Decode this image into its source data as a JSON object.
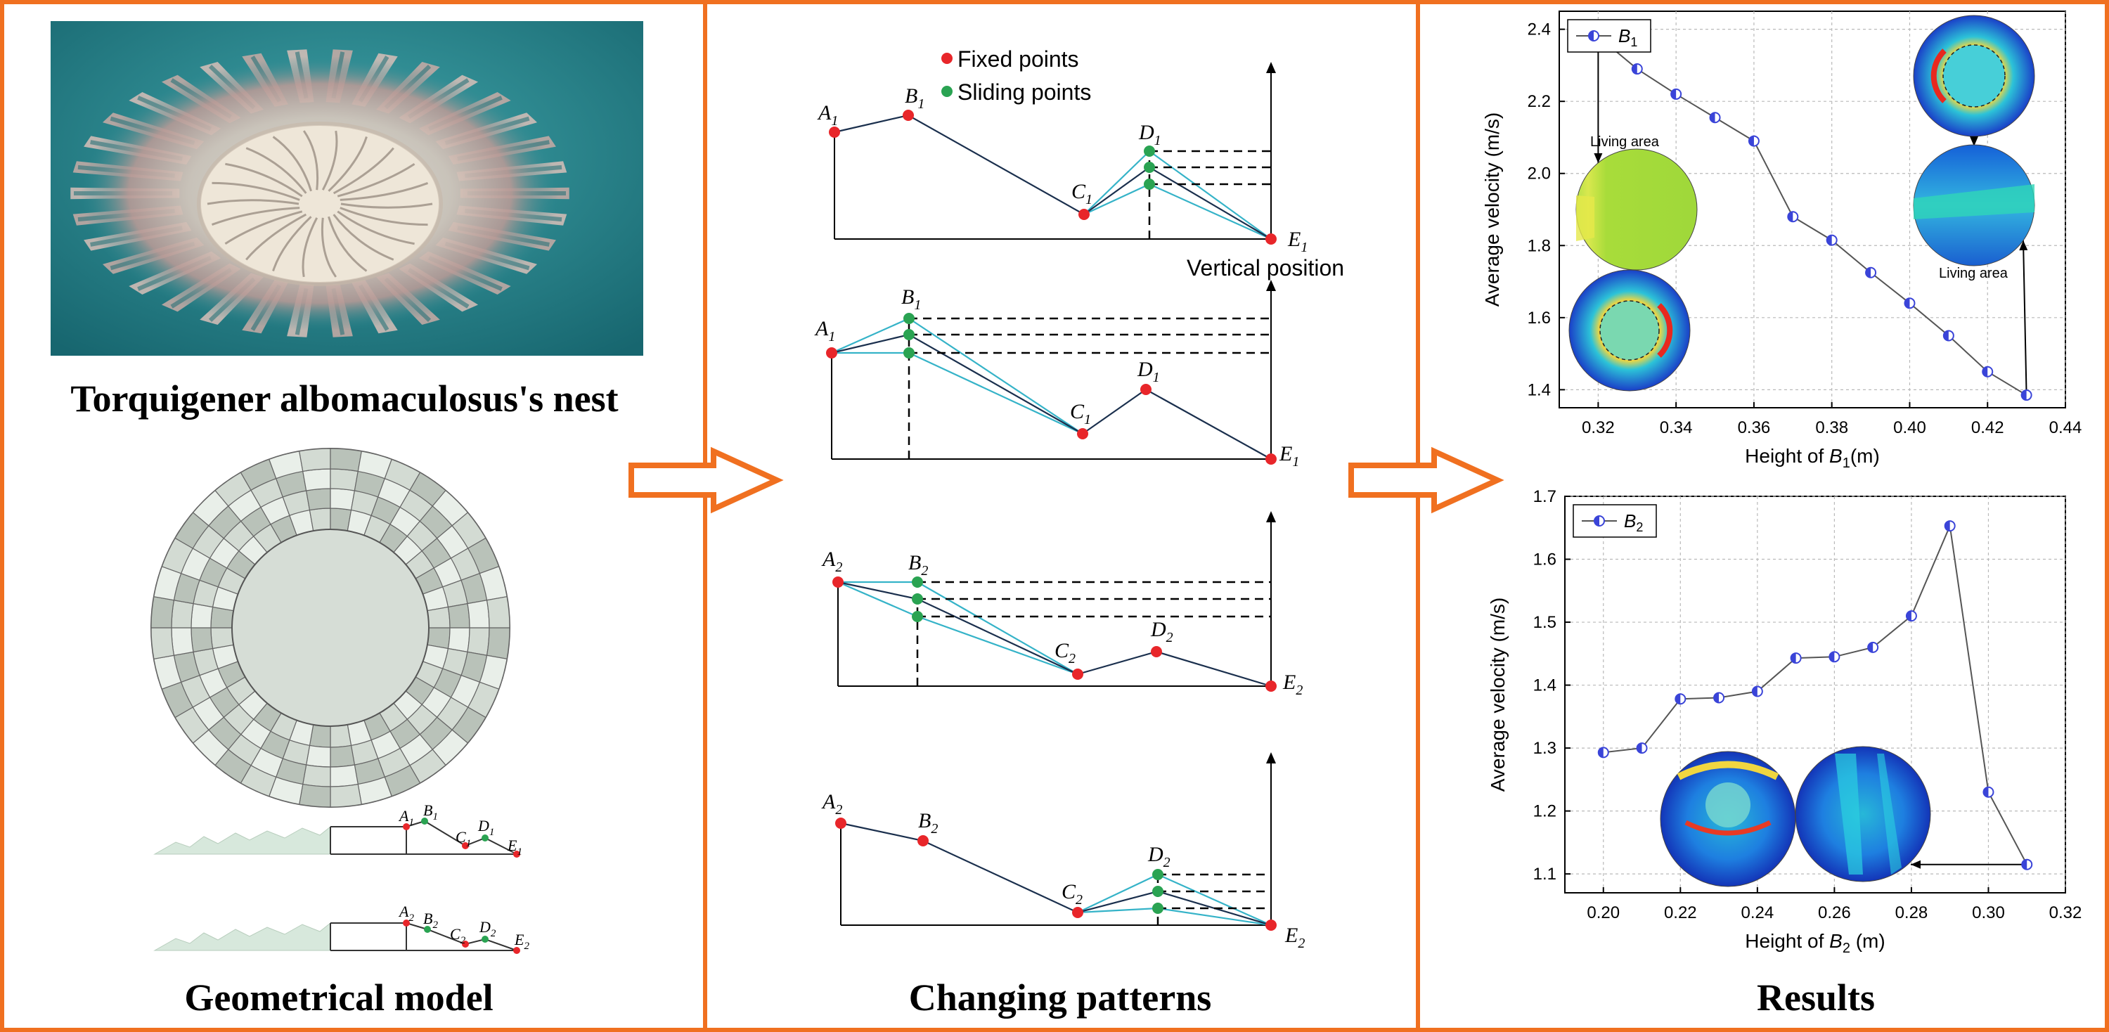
{
  "colors": {
    "frame": "#f07020",
    "arrow": "#f07020",
    "fixed_point": "#e8262a",
    "sliding_point": "#2aa352",
    "pattern_line": "#1a2f4d",
    "variant_line": "#35b3c8",
    "series_marker": "#3a44d8",
    "water": "#2a8a92"
  },
  "panels": {
    "left": {
      "photo_title": "Torquigener albomaculosus's nest",
      "model_title": "Geometrical model",
      "profile1_points": [
        {
          "base": "A",
          "sub": "1"
        },
        {
          "base": "B",
          "sub": "1"
        },
        {
          "base": "C",
          "sub": "1"
        },
        {
          "base": "D",
          "sub": "1"
        },
        {
          "base": "E",
          "sub": "1"
        }
      ],
      "profile2_points": [
        {
          "base": "A",
          "sub": "2"
        },
        {
          "base": "B",
          "sub": "2"
        },
        {
          "base": "C",
          "sub": "2"
        },
        {
          "base": "D",
          "sub": "2"
        },
        {
          "base": "E",
          "sub": "2"
        }
      ]
    },
    "middle": {
      "title": "Changing patterns",
      "legend_fixed": "Fixed points",
      "legend_sliding": "Sliding points",
      "axis_label": "Vertical position",
      "diagram1_points": [
        {
          "base": "A",
          "sub": "1"
        },
        {
          "base": "B",
          "sub": "1"
        },
        {
          "base": "C",
          "sub": "1"
        },
        {
          "base": "D",
          "sub": "1"
        },
        {
          "base": "E",
          "sub": "1"
        }
      ],
      "diagram2_points": [
        {
          "base": "A",
          "sub": "1"
        },
        {
          "base": "B",
          "sub": "1"
        },
        {
          "base": "C",
          "sub": "1"
        },
        {
          "base": "D",
          "sub": "1"
        },
        {
          "base": "E",
          "sub": "1"
        }
      ],
      "diagram3_points": [
        {
          "base": "A",
          "sub": "2"
        },
        {
          "base": "B",
          "sub": "2"
        },
        {
          "base": "C",
          "sub": "2"
        },
        {
          "base": "D",
          "sub": "2"
        },
        {
          "base": "E",
          "sub": "2"
        }
      ],
      "diagram4_points": [
        {
          "base": "A",
          "sub": "2"
        },
        {
          "base": "B",
          "sub": "2"
        },
        {
          "base": "C",
          "sub": "2"
        },
        {
          "base": "D",
          "sub": "2"
        },
        {
          "base": "E",
          "sub": "2"
        }
      ]
    },
    "right": {
      "title": "Results",
      "annotation_living_area_1": "Living area",
      "annotation_living_area_2": "Living area"
    }
  },
  "chart_data": [
    {
      "type": "line",
      "series": [
        {
          "name": "B1",
          "x": [
            0.32,
            0.33,
            0.34,
            0.35,
            0.36,
            0.37,
            0.38,
            0.39,
            0.4,
            0.41,
            0.42,
            0.43
          ],
          "values": [
            2.38,
            2.29,
            2.22,
            2.155,
            2.09,
            1.88,
            1.815,
            1.725,
            1.64,
            1.55,
            1.45,
            1.385
          ]
        }
      ],
      "legend_base": "B",
      "legend_sub": "1",
      "xlabel_prefix": "Height of ",
      "xlabel_base": "B",
      "xlabel_sub": "1",
      "xlabel_suffix": "(m)",
      "ylabel": "Average velocity (m/s)",
      "xlim": [
        0.31,
        0.44
      ],
      "ylim": [
        1.35,
        2.45
      ],
      "xticks": [
        "0.32",
        "0.34",
        "0.36",
        "0.38",
        "0.40",
        "0.42",
        "0.44"
      ],
      "yticks": [
        "1.4",
        "1.6",
        "1.8",
        "2.0",
        "2.2",
        "2.4"
      ],
      "grid": true,
      "legend_position": "top-left"
    },
    {
      "type": "line",
      "series": [
        {
          "name": "B2",
          "x": [
            0.2,
            0.21,
            0.22,
            0.23,
            0.24,
            0.25,
            0.26,
            0.27,
            0.28,
            0.29,
            0.3,
            0.31
          ],
          "values": [
            1.293,
            1.3,
            1.378,
            1.38,
            1.39,
            1.443,
            1.445,
            1.46,
            1.51,
            1.653,
            1.23,
            1.115
          ]
        }
      ],
      "legend_base": "B",
      "legend_sub": "2",
      "xlabel_prefix": "Height of ",
      "xlabel_base": "B",
      "xlabel_sub": "2",
      "xlabel_suffix": " (m)",
      "ylabel": "Average velocity (m/s)",
      "xlim": [
        0.19,
        0.32
      ],
      "ylim": [
        1.07,
        1.7
      ],
      "xticks": [
        "0.20",
        "0.22",
        "0.24",
        "0.26",
        "0.28",
        "0.30",
        "0.32"
      ],
      "yticks": [
        "1.1",
        "1.2",
        "1.3",
        "1.4",
        "1.5",
        "1.6",
        "1.7"
      ],
      "grid": true,
      "legend_position": "top-left"
    }
  ]
}
